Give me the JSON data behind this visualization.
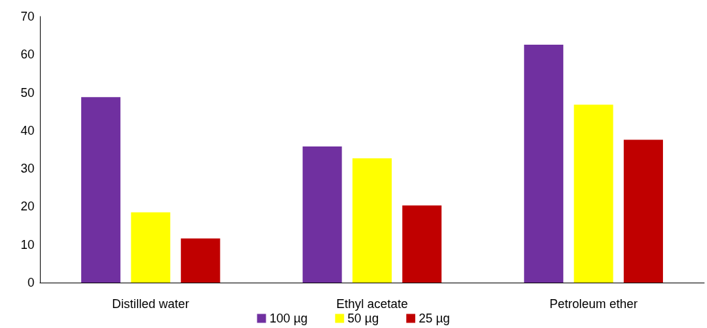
{
  "chart_data": {
    "type": "bar",
    "categories": [
      "Distilled water",
      "Ethyl acetate",
      "Petroleum ether"
    ],
    "series": [
      {
        "name": "100 µg",
        "color": "#7030a0",
        "values": [
          48.8,
          35.8,
          62.6
        ]
      },
      {
        "name": "50 µg",
        "color": "#ffff00",
        "values": [
          18.5,
          32.7,
          46.8
        ]
      },
      {
        "name": "25 µg",
        "color": "#c00000",
        "values": [
          11.6,
          20.3,
          37.6
        ]
      }
    ],
    "ylim": [
      0,
      70
    ],
    "yticks": [
      0,
      10,
      20,
      30,
      40,
      50,
      60,
      70
    ],
    "grid": false,
    "legend": "bottom"
  }
}
